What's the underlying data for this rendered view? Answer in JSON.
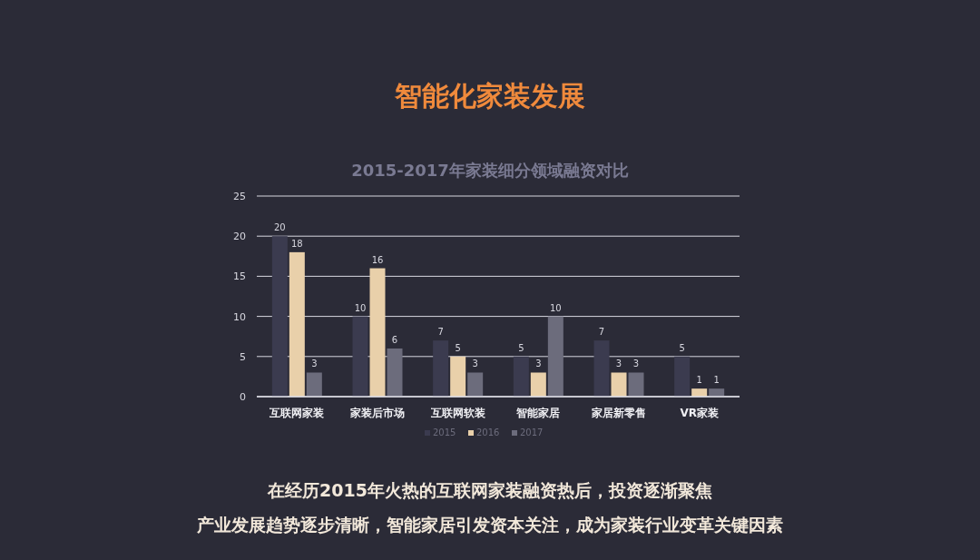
{
  "chart_data": {
    "type": "bar",
    "title": "智能化家装发展",
    "subtitle": "2015-2017年家装细分领域融资对比",
    "categories": [
      "互联网家装",
      "家装后市场",
      "互联网软装",
      "智能家居",
      "家居新零售",
      "VR家装"
    ],
    "series": [
      {
        "name": "2015",
        "color": "#3b3b4f",
        "values": [
          20,
          10,
          7,
          5,
          7,
          5
        ]
      },
      {
        "name": "2016",
        "color": "#e9d0aa",
        "values": [
          18,
          16,
          5,
          3,
          3,
          1
        ]
      },
      {
        "name": "2017",
        "color": "#6c6c7c",
        "values": [
          3,
          6,
          3,
          10,
          3,
          1
        ]
      }
    ],
    "ylim": [
      0,
      25
    ],
    "yticks": [
      0,
      5,
      10,
      15,
      20,
      25
    ],
    "grid": "y",
    "legend": "bottom",
    "data_labels": true,
    "annotations": [
      "在经历2015年火热的互联网家装融资热后，投资逐渐聚焦",
      "产业发展趋势逐步清晰，智能家居引发资本关注，成为家装行业变革关键因素"
    ]
  }
}
